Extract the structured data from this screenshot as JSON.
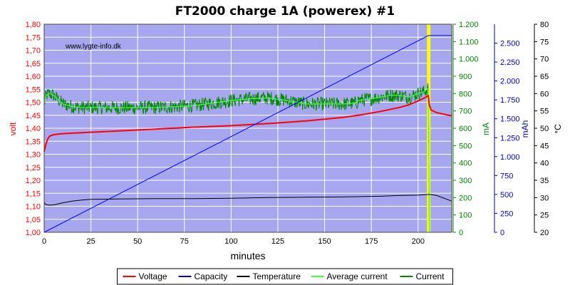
{
  "chart_data": {
    "type": "line",
    "title": "FT2000 charge 1A (powerex) #1",
    "watermark": "www.lygte-info.dk",
    "xlabel": "minutes",
    "xlim": [
      0,
      218
    ],
    "xticks": [
      "0",
      "25",
      "50",
      "75",
      "100",
      "125",
      "150",
      "175",
      "200"
    ],
    "axes": {
      "volt": {
        "label": "volt",
        "color": "#ff0000",
        "lim": [
          1.0,
          1.8
        ],
        "ticks": [
          "1,00",
          "1,05",
          "1,10",
          "1,15",
          "1,20",
          "1,25",
          "1,30",
          "1,35",
          "1,40",
          "1,45",
          "1,50",
          "1,55",
          "1,60",
          "1,65",
          "1,70",
          "1,75",
          "1,80"
        ]
      },
      "ma": {
        "label": "mA",
        "color": "#008800",
        "lim": [
          0,
          1200
        ],
        "ticks": [
          "0",
          "100",
          "200",
          "300",
          "400",
          "500",
          "600",
          "700",
          "800",
          "900",
          "1.000",
          "1.100",
          "1.200"
        ]
      },
      "mah": {
        "label": "mAh",
        "color": "#0000cc",
        "lim": [
          0,
          2750
        ],
        "ticks": [
          "0",
          "250",
          "500",
          "750",
          "1.000",
          "1.250",
          "1.500",
          "1.750",
          "2.000",
          "2.250",
          "2.500"
        ]
      },
      "temp": {
        "label": "°C",
        "color": "#000000",
        "lim": [
          20,
          80
        ],
        "ticks": [
          "20",
          "25",
          "30",
          "35",
          "40",
          "45",
          "50",
          "55",
          "60",
          "65",
          "70",
          "75",
          "80"
        ]
      }
    },
    "legend_position": "bottom",
    "series": [
      {
        "name": "Voltage",
        "axis": "volt",
        "color": "#ff0000",
        "x": [
          0,
          1,
          2,
          3,
          5,
          8,
          12,
          20,
          40,
          60,
          80,
          100,
          120,
          140,
          160,
          170,
          180,
          190,
          195,
          200,
          203,
          205.5,
          206,
          207,
          210,
          215,
          218
        ],
        "y": [
          1.31,
          1.34,
          1.36,
          1.37,
          1.375,
          1.378,
          1.38,
          1.383,
          1.39,
          1.397,
          1.404,
          1.41,
          1.418,
          1.428,
          1.442,
          1.452,
          1.465,
          1.48,
          1.49,
          1.505,
          1.515,
          1.525,
          1.49,
          1.47,
          1.46,
          1.452,
          1.448
        ]
      },
      {
        "name": "Capacity",
        "axis": "mah",
        "color": "#0000ff",
        "x": [
          0,
          205.5,
          218
        ],
        "y": [
          0,
          2600,
          2600
        ]
      },
      {
        "name": "Temperature",
        "axis": "temp",
        "color": "#000000",
        "x": [
          0,
          1,
          3,
          6,
          10,
          15,
          20,
          25,
          40,
          60,
          80,
          100,
          120,
          140,
          160,
          170,
          180,
          190,
          200,
          205,
          207,
          210,
          215,
          218
        ],
        "y": [
          28.5,
          28.0,
          27.8,
          28.0,
          28.5,
          29.0,
          29.3,
          29.5,
          29.6,
          29.7,
          29.7,
          29.8,
          30.0,
          30.1,
          30.2,
          30.3,
          30.4,
          30.6,
          30.7,
          30.9,
          30.9,
          30.6,
          29.6,
          29.0
        ]
      },
      {
        "name": "Average current",
        "axis": "ma",
        "color": "#44ff44",
        "x": [
          0,
          1,
          3,
          5,
          8,
          10,
          15,
          20,
          40,
          60,
          80,
          90,
          100,
          110,
          120,
          130,
          140,
          160,
          167,
          168,
          175,
          180,
          185,
          190,
          195,
          200,
          203,
          205.5,
          205.8,
          206
        ],
        "y": [
          740,
          790,
          800,
          790,
          760,
          740,
          725,
          720,
          718,
          720,
          730,
          745,
          760,
          770,
          775,
          760,
          740,
          740,
          745,
          760,
          770,
          780,
          790,
          790,
          780,
          800,
          810,
          830,
          400,
          0
        ]
      },
      {
        "name": "Current",
        "axis": "ma",
        "color": "#008800",
        "x": [
          0,
          1,
          3,
          5,
          8,
          10,
          15,
          20,
          40,
          60,
          80,
          90,
          100,
          110,
          120,
          130,
          140,
          160,
          167,
          168,
          175,
          180,
          185,
          190,
          195,
          200,
          203,
          205.5,
          205.8,
          206
        ],
        "y": [
          740,
          790,
          800,
          790,
          760,
          740,
          725,
          720,
          718,
          720,
          730,
          745,
          760,
          770,
          775,
          760,
          740,
          740,
          745,
          760,
          770,
          780,
          790,
          790,
          780,
          800,
          810,
          830,
          400,
          0
        ],
        "noise": 40
      }
    ],
    "annotations": [
      {
        "type": "vertical-band",
        "x": 205.5,
        "color": "#ffff00"
      }
    ]
  }
}
